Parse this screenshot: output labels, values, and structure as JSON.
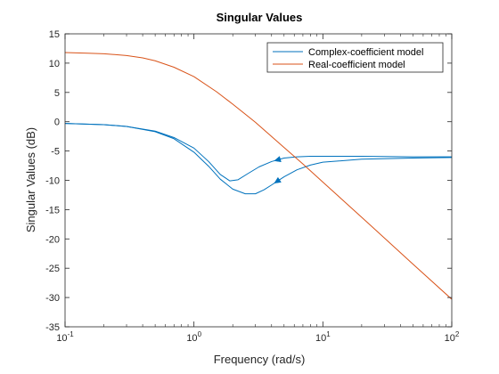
{
  "chart_data": {
    "type": "line",
    "title": "Singular Values",
    "xlabel": "Frequency (rad/s)",
    "ylabel": "Singular Values (dB)",
    "x_scale": "log",
    "xlim": [
      0.1,
      100
    ],
    "ylim": [
      -35,
      15
    ],
    "x_ticks": [
      {
        "value": 0.1,
        "base": "10",
        "exp": "-1"
      },
      {
        "value": 1,
        "base": "10",
        "exp": "0"
      },
      {
        "value": 10,
        "base": "10",
        "exp": "1"
      },
      {
        "value": 100,
        "base": "10",
        "exp": "2"
      }
    ],
    "y_ticks": [
      15,
      10,
      5,
      0,
      -5,
      -10,
      -15,
      -20,
      -25,
      -30,
      -35
    ],
    "grid": false,
    "legend_position": "top-right",
    "series": [
      {
        "name": "Complex-coefficient model",
        "color": "#0072BD",
        "branches": [
          {
            "x": [
              0.1,
              0.2,
              0.3,
              0.5,
              0.7,
              1.0,
              1.3,
              1.6,
              1.9,
              2.2,
              2.6,
              3.2,
              4.0,
              5.0,
              6.3,
              8.0,
              10,
              20,
              50,
              100
            ],
            "y": [
              -0.3,
              -0.5,
              -0.8,
              -1.6,
              -2.7,
              -4.5,
              -6.8,
              -9.0,
              -10.1,
              -9.9,
              -8.9,
              -7.7,
              -6.8,
              -6.2,
              -6.0,
              -5.9,
              -5.9,
              -5.9,
              -6.0,
              -6.0
            ],
            "arrow_at_x": 4.2
          },
          {
            "x": [
              0.1,
              0.2,
              0.3,
              0.5,
              0.7,
              1.0,
              1.3,
              1.6,
              2.0,
              2.5,
              3.0,
              3.5,
              4.0,
              5.0,
              6.3,
              8.0,
              10,
              20,
              50,
              100
            ],
            "y": [
              -0.3,
              -0.5,
              -0.8,
              -1.7,
              -2.9,
              -5.2,
              -7.6,
              -9.8,
              -11.5,
              -12.3,
              -12.3,
              -11.6,
              -10.8,
              -9.4,
              -8.2,
              -7.4,
              -6.9,
              -6.4,
              -6.2,
              -6.1
            ],
            "arrow_at_x": 4.2
          }
        ]
      },
      {
        "name": "Real-coefficient model",
        "color": "#D95319",
        "branches": [
          {
            "x": [
              0.1,
              0.15,
              0.2,
              0.3,
              0.4,
              0.5,
              0.7,
              1.0,
              1.5,
              2.0,
              3.0,
              5.0,
              7.0,
              10,
              20,
              50,
              100
            ],
            "y": [
              11.8,
              11.7,
              11.6,
              11.3,
              10.9,
              10.4,
              9.3,
              7.7,
              5.1,
              3.0,
              -0.1,
              -4.4,
              -7.2,
              -10.3,
              -16.3,
              -24.3,
              -30.3
            ]
          }
        ]
      }
    ]
  }
}
